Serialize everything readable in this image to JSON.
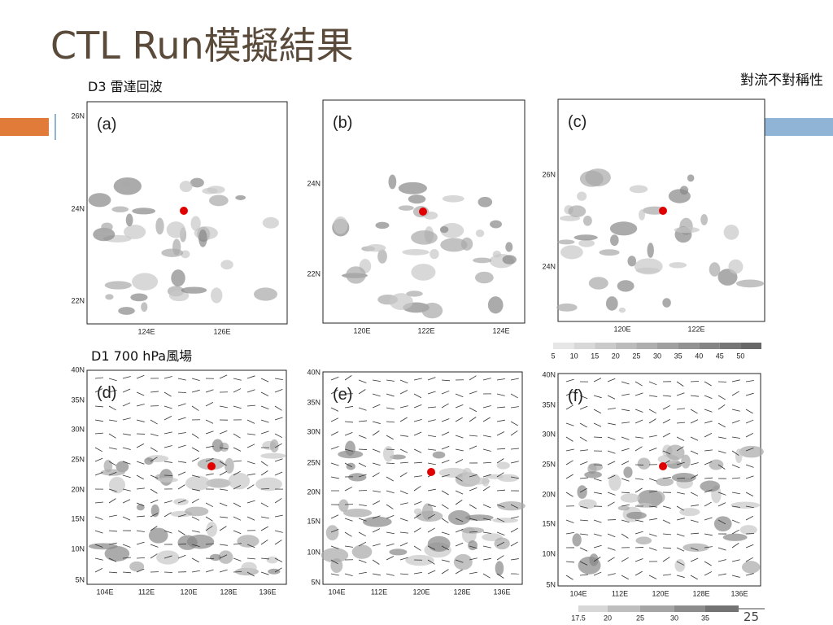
{
  "title": "CTL Run模擬結果",
  "note": "對流不對稱性",
  "sections": [
    {
      "label": "D3 雷達回波"
    },
    {
      "label": "D1 700 hPa風場"
    }
  ],
  "radar_panels": [
    {
      "label": "(a)",
      "y_ticks": [
        "26N",
        "24N",
        "22N"
      ],
      "x_ticks": [
        "124E",
        "126E"
      ]
    },
    {
      "label": "(b)",
      "y_ticks": [
        "24N",
        "22N"
      ],
      "x_ticks": [
        "120E",
        "122E",
        "124E"
      ]
    },
    {
      "label": "(c)",
      "y_ticks": [
        "26N",
        "24N"
      ],
      "x_ticks": [
        "120E",
        "122E"
      ]
    }
  ],
  "wind_panels": [
    {
      "label": "(d)",
      "y_ticks": [
        "40N",
        "35N",
        "30N",
        "25N",
        "20N",
        "15N",
        "10N",
        "5N"
      ],
      "x_ticks": [
        "104E",
        "112E",
        "120E",
        "128E",
        "136E"
      ]
    },
    {
      "label": "(e)",
      "y_ticks": [
        "40N",
        "35N",
        "30N",
        "25N",
        "20N",
        "15N",
        "10N",
        "5N"
      ],
      "x_ticks": [
        "104E",
        "112E",
        "120E",
        "128E",
        "136E"
      ]
    },
    {
      "label": "(f)",
      "y_ticks": [
        "40N",
        "35N",
        "30N",
        "25N",
        "20N",
        "15N",
        "10N",
        "5N"
      ],
      "x_ticks": [
        "104E",
        "112E",
        "120E",
        "128E",
        "136E"
      ]
    }
  ],
  "radar_colorbar": [
    "5",
    "10",
    "15",
    "20",
    "25",
    "30",
    "35",
    "40",
    "45",
    "50"
  ],
  "wind_colorbar": [
    "17.5",
    "20",
    "25",
    "30",
    "35"
  ],
  "page_number": "25"
}
